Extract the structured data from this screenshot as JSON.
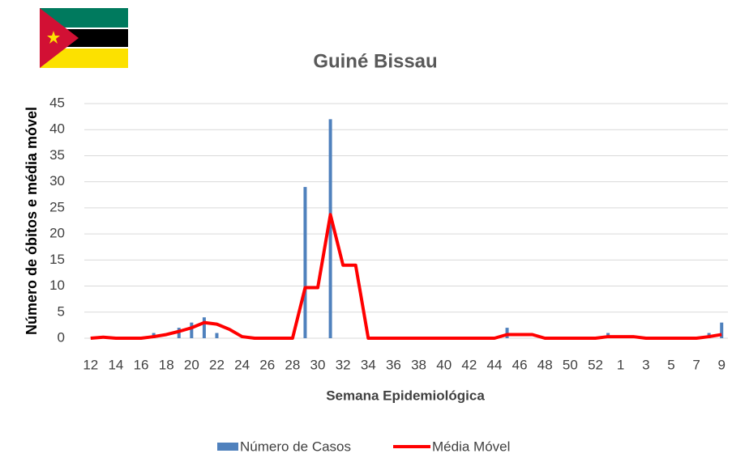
{
  "chart_data": {
    "type": "bar+line",
    "title": "Guiné Bissau",
    "x_label": "Semana Epidemiológica",
    "y_label": "Número de óbitos e média móvel",
    "categories": [
      12,
      null,
      14,
      null,
      16,
      null,
      18,
      null,
      20,
      null,
      22,
      null,
      24,
      null,
      26,
      null,
      28,
      null,
      30,
      null,
      32,
      null,
      34,
      null,
      36,
      null,
      38,
      null,
      40,
      null,
      42,
      null,
      44,
      null,
      46,
      null,
      48,
      null,
      50,
      null,
      52,
      null,
      1,
      null,
      3,
      null,
      5,
      null,
      7,
      null,
      9
    ],
    "series": [
      {
        "name": "Número de Casos",
        "type": "bar",
        "color": "#4f81bd",
        "values": [
          0,
          0,
          0,
          0,
          0,
          1,
          0,
          2,
          3,
          4,
          1,
          0,
          0,
          0,
          0,
          0,
          0,
          29,
          0,
          42,
          0,
          0,
          0,
          0,
          0,
          0,
          0,
          0,
          0,
          0,
          0,
          0,
          0,
          2,
          0,
          0,
          0,
          0,
          0,
          0,
          0,
          1,
          0,
          0,
          0,
          0,
          0,
          0,
          0,
          1,
          3
        ]
      },
      {
        "name": "Média Móvel",
        "type": "line",
        "color": "#ff0000",
        "values": [
          0,
          0.2,
          0,
          0,
          0,
          0.3,
          0.7,
          1.3,
          2,
          3,
          2.7,
          1.7,
          0.3,
          0,
          0,
          0,
          0,
          9.7,
          9.7,
          23.7,
          14,
          14,
          0,
          0,
          0,
          0,
          0,
          0,
          0,
          0,
          0,
          0,
          0,
          0.7,
          0.7,
          0.7,
          0,
          0,
          0,
          0,
          0,
          0.3,
          0.3,
          0.3,
          0,
          0,
          0,
          0,
          0,
          0.3,
          0.7
        ]
      }
    ],
    "ylim": [
      0,
      45
    ],
    "yticks": [
      0,
      5,
      10,
      15,
      20,
      25,
      30,
      35,
      40,
      45
    ],
    "grid": true
  }
}
